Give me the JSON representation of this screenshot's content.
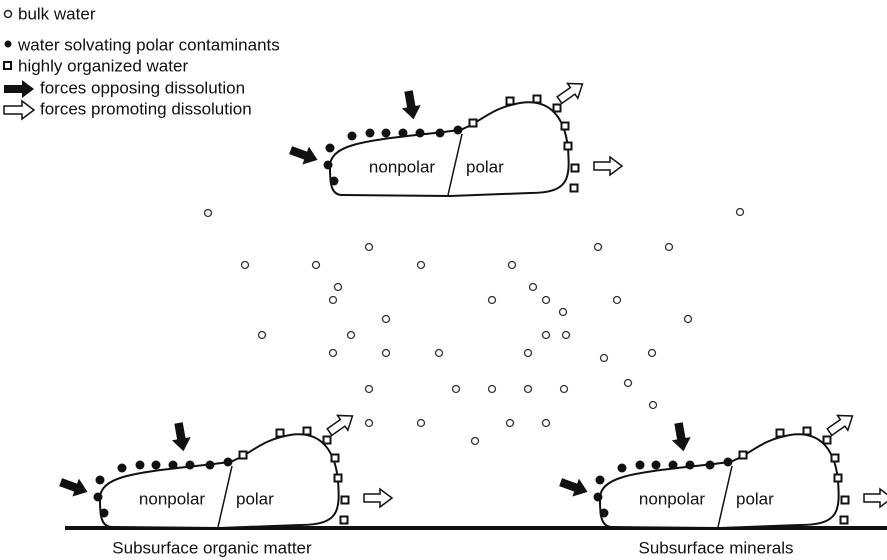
{
  "legend": [
    {
      "label": "bulk water"
    },
    {
      "label": "water solvating polar contaminants"
    },
    {
      "label": "highly organized water"
    },
    {
      "label": "forces opposing dissolution"
    },
    {
      "label": "forces promoting dissolution"
    }
  ],
  "molecules": [
    {
      "nonpolar": "nonpolar",
      "polar": "polar"
    },
    {
      "nonpolar": "nonpolar",
      "polar": "polar"
    },
    {
      "nonpolar": "nonpolar",
      "polar": "polar"
    }
  ],
  "surfaces": [
    {
      "label": "Subsurface organic matter"
    },
    {
      "label": "Subsurface minerals"
    }
  ]
}
